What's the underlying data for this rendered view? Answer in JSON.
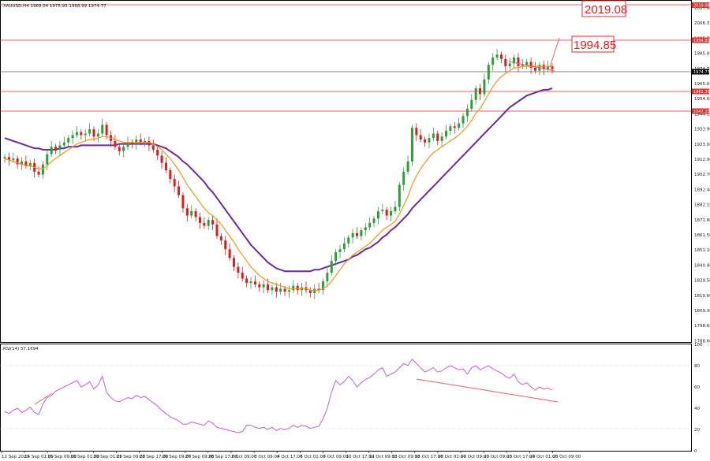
{
  "header": {
    "symbol_line": "XAUUSD,H4  1969.04 1975.93 1968.99 1974.77",
    "rsi_label": "RSI(14) 57.1694"
  },
  "colors": {
    "bull": "#2e9e3b",
    "bear": "#d62020",
    "ema_fast": "#f5951e",
    "ma_slow": "#6a2aa0",
    "rsi": "#c060d0",
    "level": "#e03030",
    "price_line": "#606060",
    "trendline": "#f06060"
  },
  "levels": {
    "big_labels": [
      "2019.08",
      "1994.85"
    ],
    "tags": [
      "2019.08",
      "1994.85",
      "1974.77",
      "1961.30",
      "1947.25"
    ]
  },
  "chart_data": [
    {
      "type": "candlestick",
      "title": "",
      "ylim": [
        1786,
        2020
      ],
      "y_ticks": [
        "2017.00",
        "2006.35",
        "1995.70",
        "1985.05",
        "1974.77",
        "1965.05",
        "1954.60",
        "1944.10",
        "1933.90",
        "1923.00",
        "1912.90",
        "1902.70",
        "1892.40",
        "1882.10",
        "1871.80",
        "1861.50",
        "1851.20",
        "1840.90",
        "1829.50",
        "1819.60",
        "1809.30",
        "1798.60",
        "1788.60"
      ],
      "x_ticks": [
        "12 Sep 2023",
        "14 Sep 01:00",
        "15 Sep 09:00",
        "18 Sep 01:00",
        "20 Sep 01:00",
        "21 Sep 09:00",
        "22 Sep 17:00",
        "26 Sep 09:00",
        "27 Sep 09:00",
        "28 Sep 17:00",
        "2 Oct 09:00",
        "3 Oct 09:00",
        "4 Oct 17:00",
        "6 Oct 01:00",
        "9 Oct 09:00",
        "10 Oct 17:00",
        "12 Oct 09:00",
        "13 Oct 09:00",
        "16 Oct 17:00",
        "18 Oct 01:00",
        "19 Oct 09:00",
        "20 Oct 09:00",
        "23 Oct 17:00",
        "24 Oct 01:00",
        "25 Oct 09:00"
      ],
      "close": [
        1915,
        1913,
        1914,
        1910,
        1912,
        1909,
        1911,
        1905,
        1903,
        1910,
        1917,
        1922,
        1920,
        1923,
        1925,
        1928,
        1930,
        1932,
        1930,
        1931,
        1934,
        1929,
        1931,
        1937,
        1930,
        1926,
        1922,
        1919,
        1922,
        1925,
        1924,
        1927,
        1925,
        1926,
        1923,
        1920,
        1916,
        1911,
        1906,
        1900,
        1895,
        1889,
        1880,
        1875,
        1878,
        1874,
        1870,
        1868,
        1872,
        1869,
        1861,
        1858,
        1852,
        1846,
        1840,
        1836,
        1832,
        1829,
        1830,
        1828,
        1826,
        1828,
        1824,
        1826,
        1823,
        1825,
        1823,
        1824,
        1827,
        1824,
        1826,
        1824,
        1822,
        1825,
        1824,
        1830,
        1836,
        1844,
        1850,
        1852,
        1856,
        1860,
        1863,
        1861,
        1865,
        1867,
        1870,
        1873,
        1878,
        1879,
        1875,
        1878,
        1881,
        1896,
        1905,
        1912,
        1935,
        1930,
        1927,
        1925,
        1928,
        1931,
        1926,
        1929,
        1933,
        1936,
        1935,
        1938,
        1943,
        1948,
        1954,
        1962,
        1958,
        1968,
        1978,
        1983,
        1985,
        1982,
        1977,
        1979,
        1983,
        1977,
        1978,
        1980,
        1976,
        1974,
        1978,
        1975,
        1977,
        1975
      ],
      "ema_fast": [
        1914,
        1913,
        1912,
        1911,
        1910,
        1909,
        1909,
        1908,
        1907,
        1907,
        1909,
        1912,
        1914,
        1916,
        1918,
        1920,
        1922,
        1924,
        1925,
        1926,
        1927,
        1927,
        1928,
        1929,
        1929,
        1928,
        1927,
        1926,
        1925,
        1925,
        1925,
        1925,
        1925,
        1925,
        1925,
        1924,
        1922,
        1920,
        1917,
        1914,
        1910,
        1906,
        1901,
        1896,
        1892,
        1888,
        1884,
        1880,
        1877,
        1875,
        1872,
        1869,
        1865,
        1861,
        1857,
        1852,
        1848,
        1844,
        1840,
        1837,
        1834,
        1832,
        1830,
        1829,
        1828,
        1827,
        1826,
        1825,
        1825,
        1825,
        1825,
        1825,
        1824,
        1824,
        1824,
        1825,
        1827,
        1830,
        1834,
        1838,
        1842,
        1845,
        1848,
        1850,
        1852,
        1854,
        1856,
        1859,
        1862,
        1865,
        1867,
        1869,
        1871,
        1876,
        1882,
        1888,
        1896,
        1902,
        1907,
        1911,
        1915,
        1918,
        1920,
        1922,
        1924,
        1926,
        1928,
        1930,
        1933,
        1936,
        1940,
        1945,
        1948,
        1953,
        1958,
        1963,
        1967,
        1970,
        1972,
        1974,
        1976,
        1976,
        1977,
        1977,
        1977,
        1977,
        1977,
        1977,
        1977,
        1977
      ],
      "ma_slow": [
        1928,
        1927,
        1926,
        1925,
        1924,
        1923,
        1922,
        1921,
        1921,
        1920,
        1920,
        1920,
        1920,
        1921,
        1921,
        1922,
        1922,
        1922,
        1923,
        1923,
        1923,
        1923,
        1923,
        1923,
        1923,
        1923,
        1923,
        1924,
        1924,
        1924,
        1924,
        1924,
        1924,
        1924,
        1924,
        1924,
        1923,
        1922,
        1921,
        1919,
        1917,
        1915,
        1912,
        1910,
        1907,
        1904,
        1901,
        1898,
        1894,
        1891,
        1887,
        1883,
        1879,
        1875,
        1871,
        1867,
        1863,
        1859,
        1855,
        1852,
        1849,
        1846,
        1843,
        1841,
        1839,
        1838,
        1837,
        1837,
        1837,
        1837,
        1837,
        1837,
        1837,
        1838,
        1838,
        1839,
        1840,
        1841,
        1842,
        1843,
        1844,
        1845,
        1847,
        1848,
        1850,
        1852,
        1853,
        1855,
        1857,
        1860,
        1862,
        1865,
        1867,
        1870,
        1873,
        1876,
        1880,
        1883,
        1886,
        1889,
        1892,
        1895,
        1898,
        1901,
        1904,
        1907,
        1910,
        1913,
        1916,
        1919,
        1922,
        1925,
        1928,
        1931,
        1934,
        1937,
        1940,
        1943,
        1946,
        1949,
        1951,
        1953,
        1955,
        1957,
        1958,
        1959,
        1960,
        1961,
        1961,
        1962
      ],
      "rsi": [
        37,
        35,
        38,
        40,
        36,
        38,
        41,
        36,
        34,
        44,
        50,
        52,
        56,
        58,
        60,
        62,
        64,
        66,
        60,
        62,
        65,
        58,
        62,
        70,
        55,
        50,
        47,
        46,
        48,
        50,
        49,
        52,
        50,
        51,
        48,
        45,
        42,
        38,
        35,
        32,
        30,
        28,
        25,
        25,
        27,
        26,
        25,
        24,
        28,
        26,
        22,
        21,
        20,
        19,
        18,
        17,
        18,
        24,
        24,
        22,
        21,
        22,
        20,
        22,
        19,
        21,
        20,
        21,
        24,
        22,
        24,
        23,
        21,
        22,
        23,
        30,
        40,
        55,
        66,
        62,
        65,
        70,
        66,
        60,
        64,
        67,
        69,
        72,
        76,
        78,
        70,
        72,
        74,
        78,
        82,
        80,
        86,
        82,
        78,
        74,
        76,
        78,
        74,
        75,
        78,
        80,
        78,
        76,
        77,
        72,
        78,
        80,
        76,
        78,
        80,
        77,
        75,
        73,
        70,
        68,
        72,
        65,
        62,
        64,
        60,
        57,
        60,
        58,
        59,
        57
      ],
      "series": [
        {
          "name": "RSI(14)",
          "ylim": [
            0,
            100
          ],
          "y_ticks": [
            100,
            80,
            60,
            40,
            20,
            0
          ]
        }
      ]
    }
  ]
}
